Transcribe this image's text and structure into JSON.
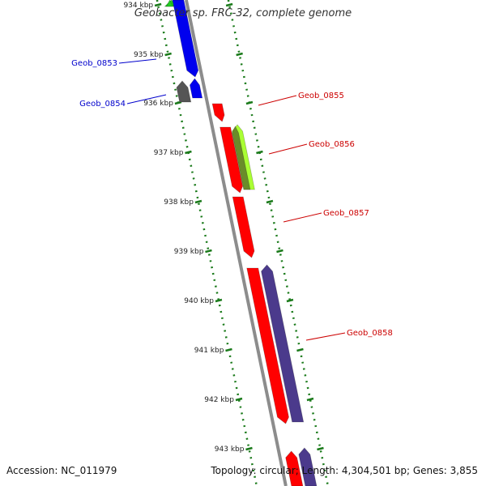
{
  "title": "Geobacter sp. FRC-32, complete genome",
  "accession": "Accession: NC_011979",
  "summary": "Topology: circular; Length: 4,304,501 bp; Genes: 3,855",
  "colors": {
    "backbone": "#8c8c8c",
    "tick": "#1a7a1a",
    "forward_label": "#0000cc",
    "reverse_label": "#cc0000",
    "red": "#ff0000",
    "blue": "#0000ee",
    "gray": "#555555",
    "green": "#22cc22",
    "yellowgreen": "#aaff33",
    "purple": "#4b3a8c"
  },
  "scale_labels": [
    "934 kbp",
    "935 kbp",
    "936 kbp",
    "937 kbp",
    "938 kbp",
    "939 kbp",
    "940 kbp",
    "941 kbp",
    "942 kbp",
    "943 kbp"
  ],
  "gene_labels": [
    {
      "text": "Geob_0853",
      "strand": "forward"
    },
    {
      "text": "Geob_0854",
      "strand": "forward"
    },
    {
      "text": "Geob_0855",
      "strand": "reverse"
    },
    {
      "text": "Geob_0856",
      "strand": "reverse"
    },
    {
      "text": "Geob_0857",
      "strand": "reverse"
    },
    {
      "text": "Geob_0858",
      "strand": "reverse"
    }
  ],
  "features": [
    {
      "name": "Geob_0853",
      "color": "blue"
    },
    {
      "name": "Geob_0854",
      "color": "gray"
    },
    {
      "name": "Geob_0855",
      "color": "red"
    },
    {
      "name": "Geob_0856",
      "color": "red"
    },
    {
      "name": "Geob_0857",
      "color": "red"
    },
    {
      "name": "Geob_0858",
      "color": "red"
    }
  ]
}
